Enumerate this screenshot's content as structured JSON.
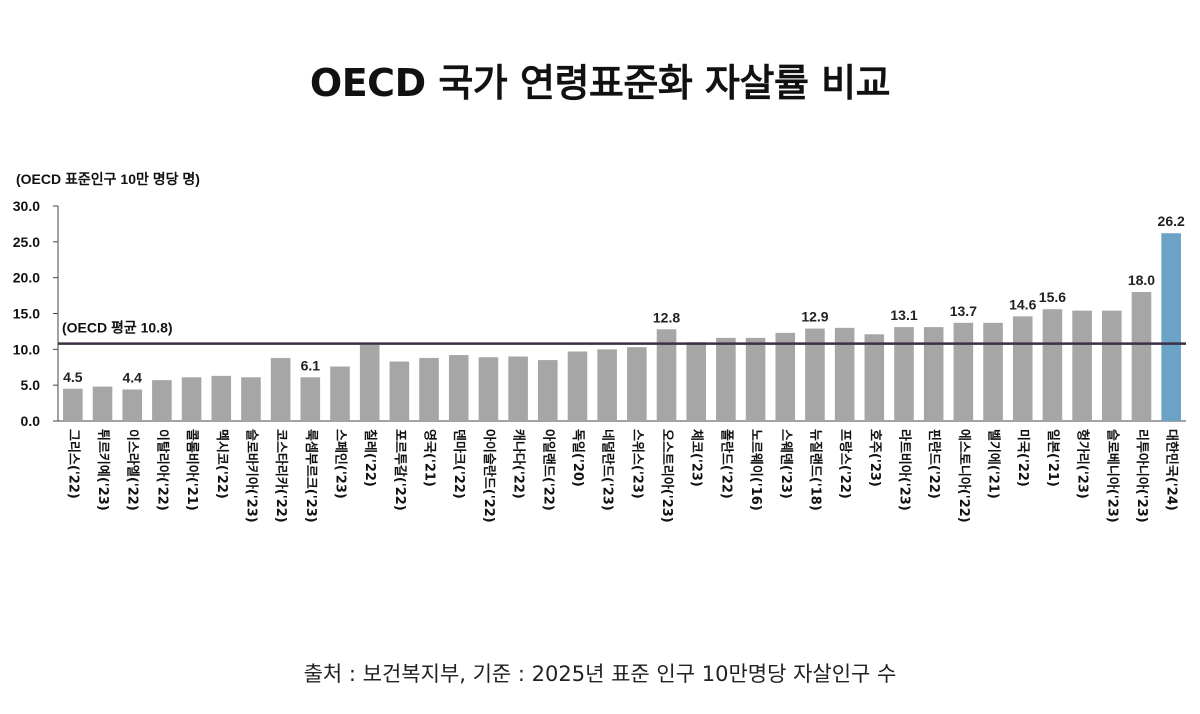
{
  "chart_data": {
    "type": "bar",
    "title": "OECD 국가 연령표준화 자살률 비교",
    "ylabel": "(OECD 표준인구 10만 명당 명)",
    "ylim": [
      0,
      30
    ],
    "yticks": [
      "0.0",
      "5.0",
      "10.0",
      "15.0",
      "20.0",
      "25.0",
      "30.0"
    ],
    "categories": [
      "그리스('22)",
      "튀르키예('23)",
      "이스라엘('22)",
      "이탈리아('22)",
      "콜롬비아('21)",
      "멕시코('22)",
      "슬로바키아('23)",
      "코스타리카('22)",
      "룩셈부르크('23)",
      "스페인('23)",
      "칠레('22)",
      "포르투갈('22)",
      "영국('21)",
      "덴마크('22)",
      "아이슬란드('22)",
      "캐나다('22)",
      "아일랜드('22)",
      "독일('20)",
      "네덜란드('23)",
      "스위스('23)",
      "오스트리아('23)",
      "체코('23)",
      "폴란드('22)",
      "노르웨이('16)",
      "스웨덴('23)",
      "뉴질랜드('18)",
      "프랑스('22)",
      "호주('23)",
      "라트비아('23)",
      "핀란드('22)",
      "에스토니아('22)",
      "벨기에('21)",
      "미국('22)",
      "일본('21)",
      "헝가리('23)",
      "슬로베니아('23)",
      "리투아니아('23)",
      "대한민국('24)"
    ],
    "values": [
      4.5,
      4.8,
      4.4,
      5.7,
      6.1,
      6.3,
      6.1,
      8.8,
      6.1,
      7.6,
      10.6,
      8.3,
      8.8,
      9.2,
      8.9,
      9.0,
      8.5,
      9.7,
      10.0,
      10.3,
      12.8,
      11.0,
      11.6,
      11.6,
      12.3,
      12.9,
      13.0,
      12.1,
      13.1,
      13.1,
      13.7,
      13.7,
      14.6,
      15.6,
      15.4,
      15.4,
      18.0,
      26.2
    ],
    "data_labels": {
      "0": "4.5",
      "2": "4.4",
      "8": "6.1",
      "20": "12.8",
      "25": "12.9",
      "28": "13.1",
      "30": "13.7",
      "32": "14.6",
      "33": "15.6",
      "36": "18.0",
      "37": "26.2"
    },
    "reference_line": {
      "value": 10.8,
      "label": "(OECD 평균 10.8)"
    },
    "colors": {
      "bar": "#a6a6a6",
      "highlight": "#6aa3c5",
      "reference": "#3f2f45"
    },
    "highlight_index": 37,
    "grid": false,
    "legend": "none"
  },
  "source_note": "출처 : 보건복지부, 기준 : 2025년 표준 인구 10만명당 자살인구 수"
}
